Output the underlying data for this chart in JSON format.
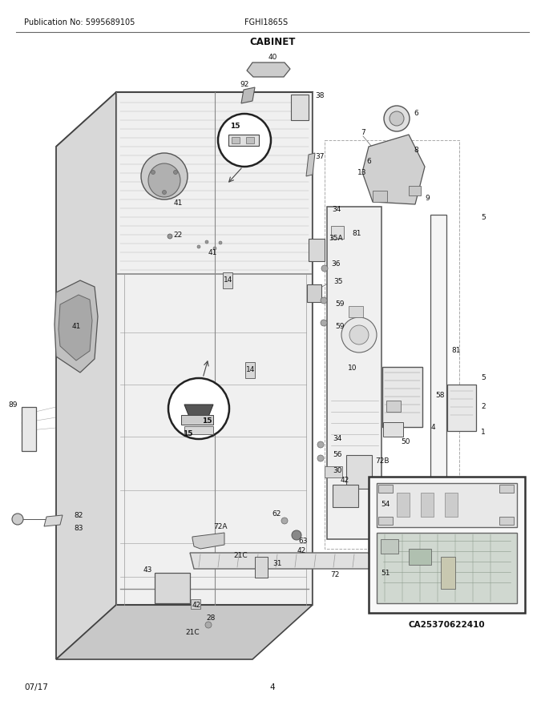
{
  "pub_no": "Publication No: 5995689105",
  "model": "FGHI1865S",
  "section": "CABINET",
  "date": "07/17",
  "page": "4",
  "ca_code": "CA25370622410",
  "bg_color": "#ffffff",
  "fig_width": 6.8,
  "fig_height": 8.8,
  "dpi": 100,
  "cab_color": "#f0f0f0",
  "cab_side_color": "#d8d8d8",
  "cab_top_color": "#e0e0e0",
  "cab_line_color": "#444444",
  "shelf_color": "#aaaaaa",
  "part_label_color": "#111111",
  "header_line_color": "#666666"
}
